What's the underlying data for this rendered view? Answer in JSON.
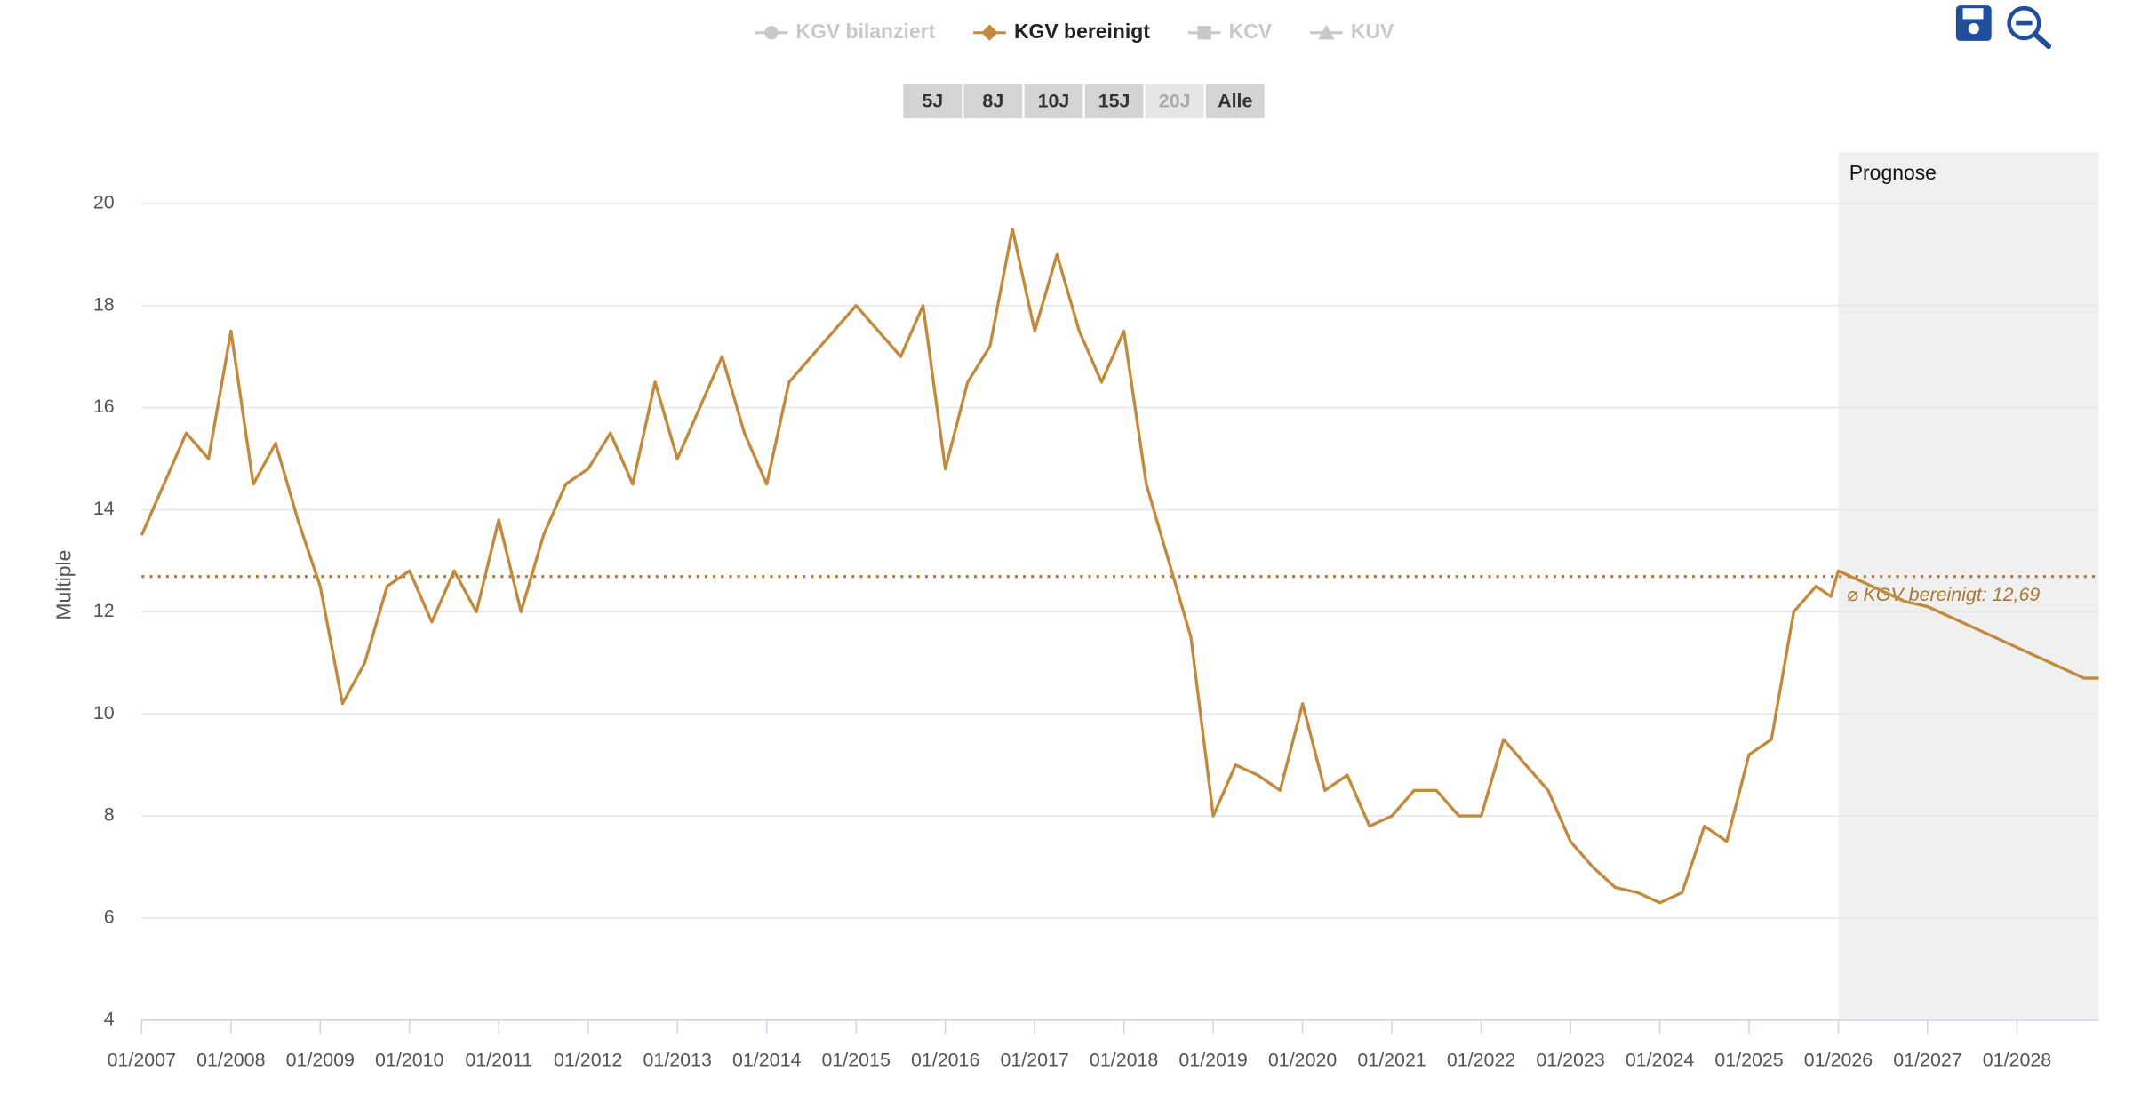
{
  "chart_data": {
    "type": "line",
    "y_label": "Multiple",
    "legend_items": [
      {
        "name": "KGV bilanziert",
        "color": "#c8c8c8",
        "active": false,
        "marker": "circle"
      },
      {
        "name": "KGV bereinigt",
        "color": "#c28a3c",
        "active": true,
        "marker": "diamond"
      },
      {
        "name": "KCV",
        "color": "#c8c8c8",
        "active": false,
        "marker": "square"
      },
      {
        "name": "KUV",
        "color": "#c8c8c8",
        "active": false,
        "marker": "triangle"
      }
    ],
    "range_buttons": [
      {
        "label": "5J",
        "disabled": false
      },
      {
        "label": "8J",
        "disabled": false
      },
      {
        "label": "10J",
        "disabled": false
      },
      {
        "label": "15J",
        "disabled": false
      },
      {
        "label": "20J",
        "disabled": true
      },
      {
        "label": "Alle",
        "disabled": false
      }
    ],
    "forecast_band": {
      "label": "Prognose",
      "start": "01/2026",
      "end": "12/2028"
    },
    "average": {
      "value": 12.69,
      "label": "⌀ KGV bereinigt: 12,69",
      "color": "#a77a34"
    },
    "xlim": [
      "01/2007",
      "12/2028"
    ],
    "xticks": [
      "01/2007",
      "01/2008",
      "01/2009",
      "01/2010",
      "01/2011",
      "01/2012",
      "01/2013",
      "01/2014",
      "01/2015",
      "01/2016",
      "01/2017",
      "01/2018",
      "01/2019",
      "01/2020",
      "01/2021",
      "01/2022",
      "01/2023",
      "01/2024",
      "01/2025",
      "01/2026",
      "01/2027",
      "01/2028"
    ],
    "ylim": [
      4,
      21
    ],
    "yticks": [
      4,
      6,
      8,
      10,
      12,
      14,
      16,
      18,
      20
    ],
    "grid": true,
    "x": [
      "01/2007",
      "04/2007",
      "07/2007",
      "10/2007",
      "01/2008",
      "04/2008",
      "07/2008",
      "10/2008",
      "01/2009",
      "04/2009",
      "07/2009",
      "10/2009",
      "01/2010",
      "04/2010",
      "07/2010",
      "10/2010",
      "01/2011",
      "04/2011",
      "07/2011",
      "10/2011",
      "01/2012",
      "04/2012",
      "07/2012",
      "10/2012",
      "01/2013",
      "04/2013",
      "07/2013",
      "10/2013",
      "01/2014",
      "04/2014",
      "07/2014",
      "10/2014",
      "01/2015",
      "04/2015",
      "07/2015",
      "10/2015",
      "01/2016",
      "04/2016",
      "07/2016",
      "10/2016",
      "01/2017",
      "04/2017",
      "07/2017",
      "10/2017",
      "01/2018",
      "04/2018",
      "07/2018",
      "10/2018",
      "01/2019",
      "04/2019",
      "07/2019",
      "10/2019",
      "01/2020",
      "04/2020",
      "07/2020",
      "10/2020",
      "01/2021",
      "04/2021",
      "07/2021",
      "10/2021",
      "01/2022",
      "04/2022",
      "07/2022",
      "10/2022",
      "01/2023",
      "04/2023",
      "07/2023",
      "10/2023",
      "01/2024",
      "04/2024",
      "07/2024",
      "10/2024",
      "01/2025",
      "04/2025",
      "07/2025",
      "10/2025",
      "12/2025",
      "01/2026",
      "04/2026",
      "07/2026",
      "10/2026",
      "01/2027",
      "04/2027",
      "07/2027",
      "10/2027",
      "01/2028",
      "04/2028",
      "07/2028",
      "10/2028",
      "12/2028"
    ],
    "series": [
      {
        "name": "KGV bereinigt",
        "color": "#c28a3c",
        "values": [
          13.5,
          14.5,
          15.5,
          15.0,
          17.5,
          14.5,
          15.3,
          13.8,
          12.5,
          10.2,
          11.0,
          12.5,
          12.8,
          11.8,
          12.8,
          12.0,
          13.8,
          12.0,
          13.5,
          14.5,
          14.8,
          15.5,
          14.5,
          16.5,
          15.0,
          16.0,
          17.0,
          15.5,
          14.5,
          16.5,
          17.0,
          17.5,
          18.0,
          17.5,
          17.0,
          18.0,
          14.8,
          16.5,
          17.2,
          19.5,
          17.5,
          19.0,
          17.5,
          16.5,
          17.5,
          14.5,
          13.0,
          11.5,
          8.0,
          9.0,
          8.8,
          8.5,
          10.2,
          8.5,
          8.8,
          7.8,
          8.0,
          8.5,
          8.5,
          8.0,
          8.0,
          9.5,
          9.0,
          8.5,
          7.5,
          7.0,
          6.6,
          6.5,
          6.3,
          6.5,
          7.8,
          7.5,
          9.2,
          9.5,
          12.0,
          12.5,
          12.3,
          12.8,
          12.6,
          12.4,
          12.2,
          12.1,
          11.9,
          11.7,
          11.5,
          11.3,
          11.1,
          10.9,
          10.7,
          10.7
        ]
      }
    ]
  }
}
